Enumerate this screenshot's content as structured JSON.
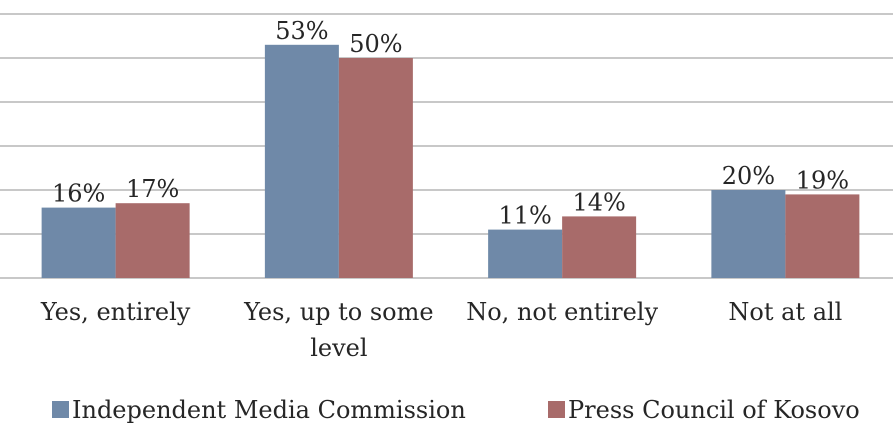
{
  "chart_data": {
    "type": "bar",
    "categories": [
      [
        "Yes, entirely"
      ],
      [
        "Yes, up to some",
        "level"
      ],
      [
        "No, not entirely"
      ],
      [
        "Not at all"
      ]
    ],
    "series": [
      {
        "name": "Independent Media Commission",
        "values": [
          16,
          53,
          11,
          20
        ],
        "labels": [
          "16%",
          "53%",
          "11%",
          "20%"
        ],
        "color": "#6f89a8"
      },
      {
        "name": "Press Council of Kosovo",
        "values": [
          17,
          50,
          14,
          19
        ],
        "labels": [
          "17%",
          "50%",
          "14%",
          "19%"
        ],
        "color": "#a86b6a"
      }
    ],
    "ylim": [
      0,
      60
    ],
    "grid": true,
    "legend": "bottom",
    "title": "",
    "xlabel": "",
    "ylabel": ""
  }
}
